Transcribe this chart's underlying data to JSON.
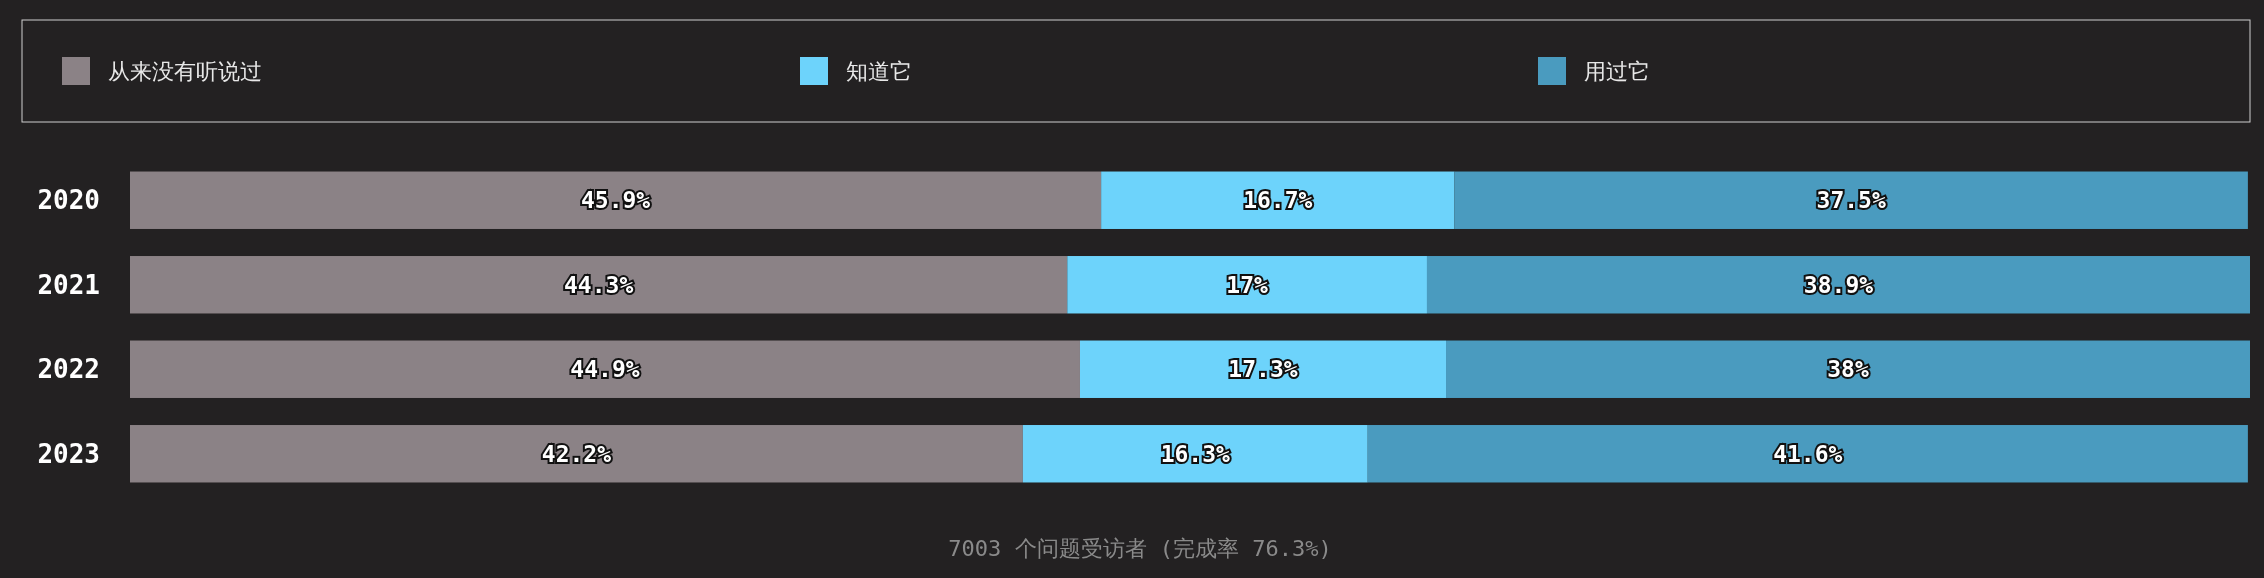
{
  "chart_data": {
    "type": "bar",
    "orientation": "horizontal",
    "stacked": true,
    "legend": "top",
    "categories": [
      "2020",
      "2021",
      "2022",
      "2023"
    ],
    "series": [
      {
        "name": "从来没有听说过",
        "color": "#8b8286",
        "values": [
          45.9,
          44.3,
          44.9,
          42.2
        ],
        "value_labels": [
          "45.9%",
          "44.3%",
          "44.9%",
          "42.2%"
        ]
      },
      {
        "name": "知道它",
        "color": "#6dd3fb",
        "values": [
          16.7,
          17,
          17.3,
          16.3
        ],
        "value_labels": [
          "16.7%",
          "17%",
          "17.3%",
          "16.3%"
        ]
      },
      {
        "name": "用过它",
        "color": "#4a9bbf",
        "values": [
          37.5,
          38.9,
          38,
          41.6
        ],
        "value_labels": [
          "37.5%",
          "38.9%",
          "38%",
          "41.6%"
        ]
      }
    ],
    "annotations": [
      "7003 个问题受访者 (完成率 76.3%)"
    ]
  }
}
